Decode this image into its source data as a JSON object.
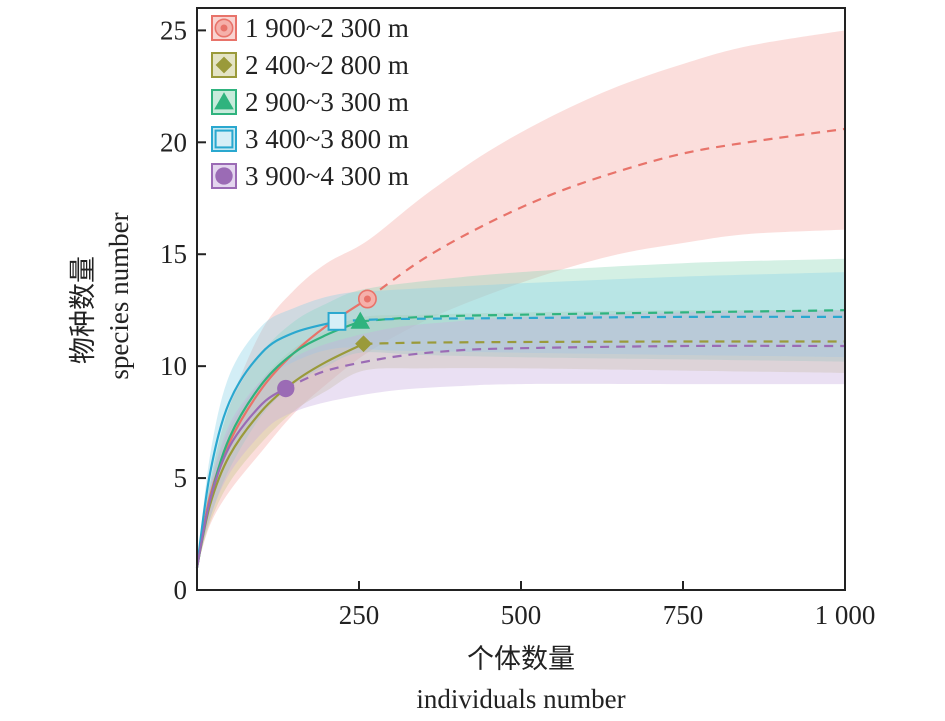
{
  "chart_data": {
    "type": "line",
    "title": "",
    "xlabel_cn": "个体数量",
    "xlabel_en": "individuals number",
    "ylabel_cn": "物种数量",
    "ylabel_en": "species number",
    "xlim": [
      0,
      1000
    ],
    "ylim": [
      0,
      26
    ],
    "x_ticks": [
      250,
      500,
      750,
      1000
    ],
    "x_tick_labels": [
      "250",
      "500",
      "750",
      "1 000"
    ],
    "y_ticks": [
      0,
      5,
      10,
      15,
      20,
      25
    ],
    "y_tick_labels": [
      "0",
      "5",
      "10",
      "15",
      "20",
      "25"
    ],
    "legend_position": "top-left",
    "series": [
      {
        "name": "1 900~2 300 m",
        "color": "#e8736a",
        "band_color": "#f4a9a4",
        "marker": "circle-dot",
        "observed_n": 263,
        "observed_s": 13,
        "points": [
          [
            0,
            1
          ],
          [
            20,
            4.2
          ],
          [
            50,
            6.6
          ],
          [
            100,
            9.0
          ],
          [
            150,
            10.6
          ],
          [
            200,
            11.8
          ],
          [
            263,
            13
          ],
          [
            350,
            14.8
          ],
          [
            450,
            16.4
          ],
          [
            550,
            17.7
          ],
          [
            650,
            18.7
          ],
          [
            750,
            19.5
          ],
          [
            850,
            20.0
          ],
          [
            1000,
            20.6
          ]
        ],
        "lower": [
          [
            0,
            1
          ],
          [
            20,
            2.9
          ],
          [
            50,
            4.4
          ],
          [
            100,
            6.2
          ],
          [
            150,
            7.9
          ],
          [
            200,
            9.2
          ],
          [
            263,
            10.6
          ],
          [
            350,
            12
          ],
          [
            450,
            13.2
          ],
          [
            550,
            14.2
          ],
          [
            650,
            15
          ],
          [
            750,
            15.5
          ],
          [
            850,
            15.9
          ],
          [
            1000,
            16.1
          ]
        ],
        "upper": [
          [
            0,
            1
          ],
          [
            20,
            4.8
          ],
          [
            50,
            8.2
          ],
          [
            100,
            11.6
          ],
          [
            150,
            13.4
          ],
          [
            200,
            14.6
          ],
          [
            263,
            15.6
          ],
          [
            350,
            17.6
          ],
          [
            450,
            19.6
          ],
          [
            550,
            21.2
          ],
          [
            650,
            22.5
          ],
          [
            750,
            23.5
          ],
          [
            850,
            24.3
          ],
          [
            1000,
            25
          ]
        ]
      },
      {
        "name": "2 400~2 800 m",
        "color": "#9a9a3a",
        "band_color": "#c9c98c",
        "marker": "diamond",
        "observed_n": 257,
        "observed_s": 11,
        "points": [
          [
            0,
            1
          ],
          [
            20,
            3.8
          ],
          [
            50,
            6.0
          ],
          [
            100,
            8.0
          ],
          [
            150,
            9.3
          ],
          [
            200,
            10.2
          ],
          [
            257,
            11
          ],
          [
            350,
            11.05
          ],
          [
            500,
            11.08
          ],
          [
            750,
            11.1
          ],
          [
            1000,
            11.1
          ]
        ],
        "lower": [
          [
            0,
            1
          ],
          [
            20,
            3
          ],
          [
            50,
            4.8
          ],
          [
            100,
            6.6
          ],
          [
            150,
            8.0
          ],
          [
            200,
            8.9
          ],
          [
            257,
            9.8
          ],
          [
            350,
            9.9
          ],
          [
            500,
            9.9
          ],
          [
            750,
            9.8
          ],
          [
            1000,
            9.7
          ]
        ],
        "upper": [
          [
            0,
            1
          ],
          [
            20,
            4.6
          ],
          [
            50,
            7.2
          ],
          [
            100,
            9.4
          ],
          [
            150,
            10.8
          ],
          [
            200,
            11.6
          ],
          [
            257,
            12.2
          ],
          [
            350,
            12.3
          ],
          [
            500,
            12.4
          ],
          [
            750,
            12.5
          ],
          [
            1000,
            12.5
          ]
        ]
      },
      {
        "name": "2 900~3 300 m",
        "color": "#2fb37e",
        "band_color": "#8fd8b8",
        "marker": "triangle",
        "observed_n": 252,
        "observed_s": 12,
        "points": [
          [
            0,
            1
          ],
          [
            20,
            4.0
          ],
          [
            50,
            6.8
          ],
          [
            100,
            9.2
          ],
          [
            150,
            10.6
          ],
          [
            200,
            11.4
          ],
          [
            252,
            12
          ],
          [
            350,
            12.2
          ],
          [
            500,
            12.3
          ],
          [
            750,
            12.4
          ],
          [
            1000,
            12.5
          ]
        ],
        "lower": [
          [
            0,
            1
          ],
          [
            20,
            3.2
          ],
          [
            50,
            5.4
          ],
          [
            100,
            7.8
          ],
          [
            150,
            9.2
          ],
          [
            200,
            10.0
          ],
          [
            252,
            10.6
          ],
          [
            350,
            10.5
          ],
          [
            500,
            10.4
          ],
          [
            750,
            10.3
          ],
          [
            1000,
            10.2
          ]
        ],
        "upper": [
          [
            0,
            1
          ],
          [
            20,
            4.8
          ],
          [
            50,
            8.2
          ],
          [
            100,
            10.6
          ],
          [
            150,
            12.0
          ],
          [
            200,
            12.8
          ],
          [
            252,
            13.4
          ],
          [
            350,
            13.8
          ],
          [
            500,
            14.2
          ],
          [
            750,
            14.6
          ],
          [
            1000,
            14.8
          ]
        ]
      },
      {
        "name": "3 400~3 800 m",
        "color": "#2aa8cf",
        "band_color": "#8cd3e8",
        "marker": "square-open",
        "observed_n": 216,
        "observed_s": 12,
        "points": [
          [
            0,
            1
          ],
          [
            20,
            5.2
          ],
          [
            50,
            8.4
          ],
          [
            100,
            10.6
          ],
          [
            150,
            11.5
          ],
          [
            216,
            12
          ],
          [
            300,
            12.1
          ],
          [
            500,
            12.15
          ],
          [
            750,
            12.2
          ],
          [
            1000,
            12.2
          ]
        ],
        "lower": [
          [
            0,
            1
          ],
          [
            20,
            4.2
          ],
          [
            50,
            7.0
          ],
          [
            100,
            9.2
          ],
          [
            150,
            10.2
          ],
          [
            216,
            10.8
          ],
          [
            300,
            10.7
          ],
          [
            500,
            10.6
          ],
          [
            750,
            10.5
          ],
          [
            1000,
            10.4
          ]
        ],
        "upper": [
          [
            0,
            1
          ],
          [
            20,
            6.0
          ],
          [
            50,
            9.6
          ],
          [
            100,
            11.8
          ],
          [
            150,
            12.6
          ],
          [
            216,
            13.2
          ],
          [
            300,
            13.4
          ],
          [
            500,
            13.7
          ],
          [
            750,
            14.0
          ],
          [
            1000,
            14.2
          ]
        ]
      },
      {
        "name": "3 900~4 300 m",
        "color": "#9b6bb5",
        "band_color": "#c9aee0",
        "marker": "circle",
        "observed_n": 137,
        "observed_s": 9,
        "points": [
          [
            0,
            1
          ],
          [
            20,
            4.0
          ],
          [
            50,
            6.4
          ],
          [
            100,
            8.3
          ],
          [
            137,
            9
          ],
          [
            200,
            9.8
          ],
          [
            300,
            10.4
          ],
          [
            400,
            10.7
          ],
          [
            500,
            10.8
          ],
          [
            750,
            10.9
          ],
          [
            1000,
            10.9
          ]
        ],
        "lower": [
          [
            0,
            1
          ],
          [
            20,
            3.2
          ],
          [
            50,
            5.2
          ],
          [
            100,
            7.0
          ],
          [
            137,
            7.8
          ],
          [
            200,
            8.4
          ],
          [
            300,
            8.9
          ],
          [
            400,
            9.1
          ],
          [
            500,
            9.2
          ],
          [
            750,
            9.2
          ],
          [
            1000,
            9.2
          ]
        ],
        "upper": [
          [
            0,
            1
          ],
          [
            20,
            4.6
          ],
          [
            50,
            7.4
          ],
          [
            100,
            9.4
          ],
          [
            137,
            10.2
          ],
          [
            200,
            11.0
          ],
          [
            300,
            11.7
          ],
          [
            400,
            12.0
          ],
          [
            500,
            12.2
          ],
          [
            750,
            12.4
          ],
          [
            1000,
            12.5
          ]
        ]
      }
    ]
  }
}
